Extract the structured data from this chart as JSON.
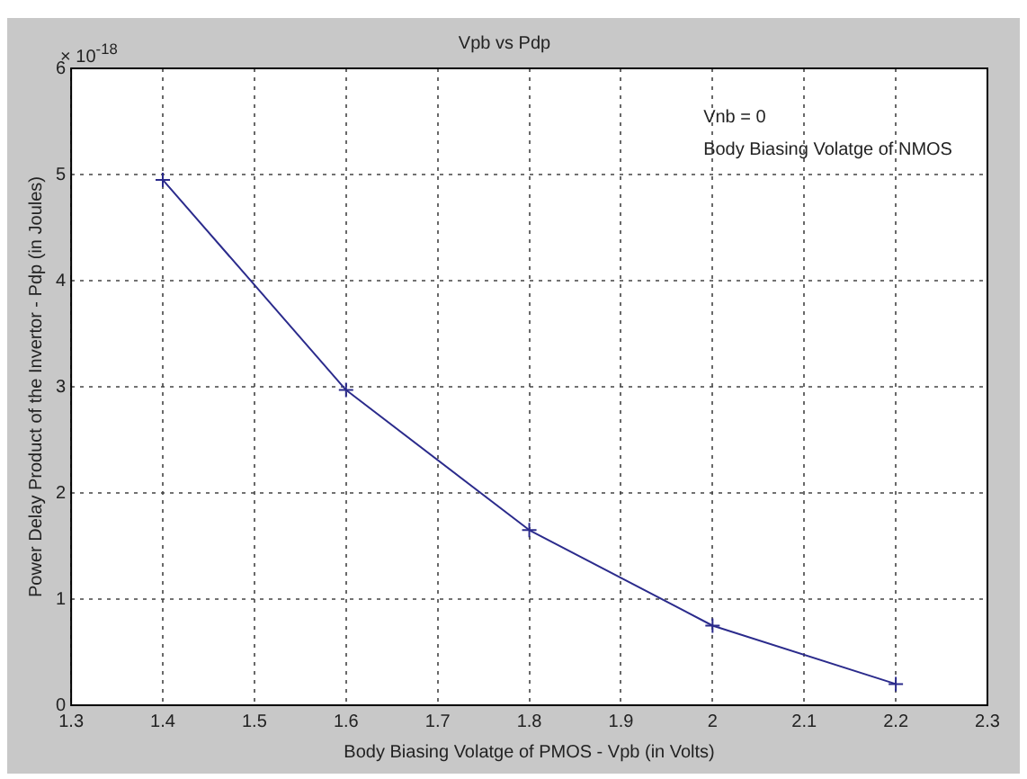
{
  "chart_data": {
    "type": "line",
    "title": "Vpb vs Pdp",
    "xlabel": "Body Biasing Volatge of PMOS - Vpb (in Volts)",
    "ylabel": "Power Delay Product of the Invertor - Pdp (in Joules)",
    "x": [
      1.4,
      1.6,
      1.8,
      2,
      2.2
    ],
    "series": [
      {
        "color": "#2b2b8c",
        "values": [
          4.95,
          2.97,
          1.65,
          0.75,
          0.2
        ]
      }
    ],
    "xlim": [
      1.3,
      2.3
    ],
    "xticks": [
      1.3,
      1.4,
      1.5,
      1.6,
      1.7,
      1.8,
      1.9,
      2,
      2.1,
      2.2,
      2.3
    ],
    "ylim": [
      0,
      6
    ],
    "yticks": [
      0,
      1,
      2,
      3,
      4,
      5,
      6
    ],
    "grid": true,
    "marker": "cross",
    "line_style": "solid",
    "legend": false,
    "annotations": [
      "× 10$^{-18}$",
      "Vnb = 0",
      "Body Biasing Volatge of NMOS"
    ]
  }
}
